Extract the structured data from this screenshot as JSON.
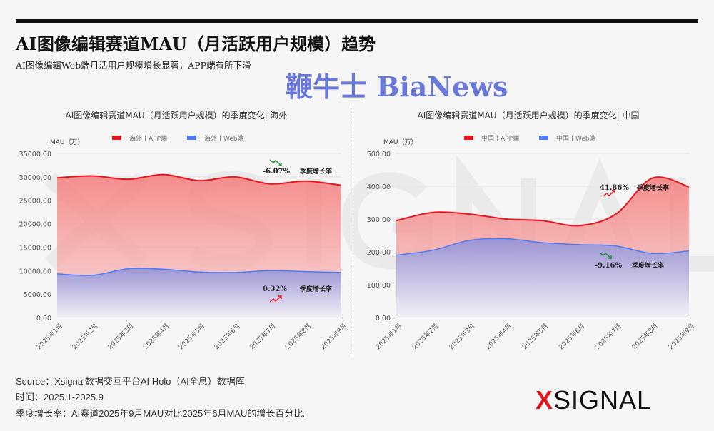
{
  "header": {
    "title": "AI图像编辑赛道MAU（月活跃用户规模）趋势",
    "subtitle": "AI图像编辑Web端月活用户规模增长显著，APP端有所下滑"
  },
  "footer": {
    "source": "Source：Xsignal数据交互平台AI Holo（AI全息）数据库",
    "time": "时间：2025.1-2025.9",
    "note": "季度增长率：AI赛道2025年9月MAU对比2025年6月MAU的增长百分比。"
  },
  "logo": {
    "text": "SIGNAL",
    "mark": "X"
  },
  "watermark": {
    "text": "鞭牛士 BiaNews",
    "bg": "XSIGNAL"
  },
  "chart_data": [
    {
      "type": "area",
      "title": "AI图像编辑赛道MAU（月活跃用户规模）的季度变化| 海外",
      "ylabel": "MAU（万）",
      "ylim": [
        0,
        35000
      ],
      "yticks": [
        "0.00",
        "5000.00",
        "10000.00",
        "15000.00",
        "20000.00",
        "25000.00",
        "30000.00",
        "35000.00"
      ],
      "categories": [
        "2025年1月",
        "2025年2月",
        "2025年3月",
        "2025年4月",
        "2025年5月",
        "2025年6月",
        "2025年7月",
        "2025年8月",
        "2025年9月"
      ],
      "legend_position": "top",
      "grid": true,
      "series": [
        {
          "name": "海外丨APP端",
          "color": "#e8141e",
          "values": [
            29800,
            30200,
            29500,
            30500,
            29200,
            30000,
            28500,
            29100,
            28200
          ]
        },
        {
          "name": "海外丨Web端",
          "color": "#4d7cf5",
          "values": [
            9300,
            9000,
            10400,
            10300,
            9700,
            9600,
            10000,
            9800,
            9600
          ]
        }
      ],
      "annotations": [
        {
          "text": "-6.07%",
          "label": "季度增长率",
          "trend": "down"
        },
        {
          "text": "0.32%",
          "label": "季度增长率",
          "trend": "up"
        }
      ]
    },
    {
      "type": "area",
      "title": "AI图像编辑赛道MAU（月活跃用户规模）的季度变化| 中国",
      "ylabel": "MAU（万）",
      "ylim": [
        0,
        500
      ],
      "yticks": [
        "0.00",
        "100.00",
        "200.00",
        "300.00",
        "400.00",
        "500.00"
      ],
      "categories": [
        "2025年1月",
        "2025年2月",
        "2025年3月",
        "2025年4月",
        "2025年5月",
        "2025年6月",
        "2025年7月",
        "2025年8月",
        "2025年9月"
      ],
      "legend_position": "top",
      "grid": true,
      "series": [
        {
          "name": "中国丨APP端",
          "color": "#e8141e",
          "values": [
            295,
            320,
            315,
            300,
            295,
            280,
            315,
            425,
            398
          ]
        },
        {
          "name": "中国丨Web端",
          "color": "#4d7cf5",
          "values": [
            190,
            205,
            235,
            240,
            228,
            222,
            218,
            195,
            203
          ]
        }
      ],
      "annotations": [
        {
          "text": "41.86%",
          "label": "季度增长率",
          "trend": "up"
        },
        {
          "text": "-9.16%",
          "label": "季度增长率",
          "trend": "down"
        }
      ]
    }
  ]
}
